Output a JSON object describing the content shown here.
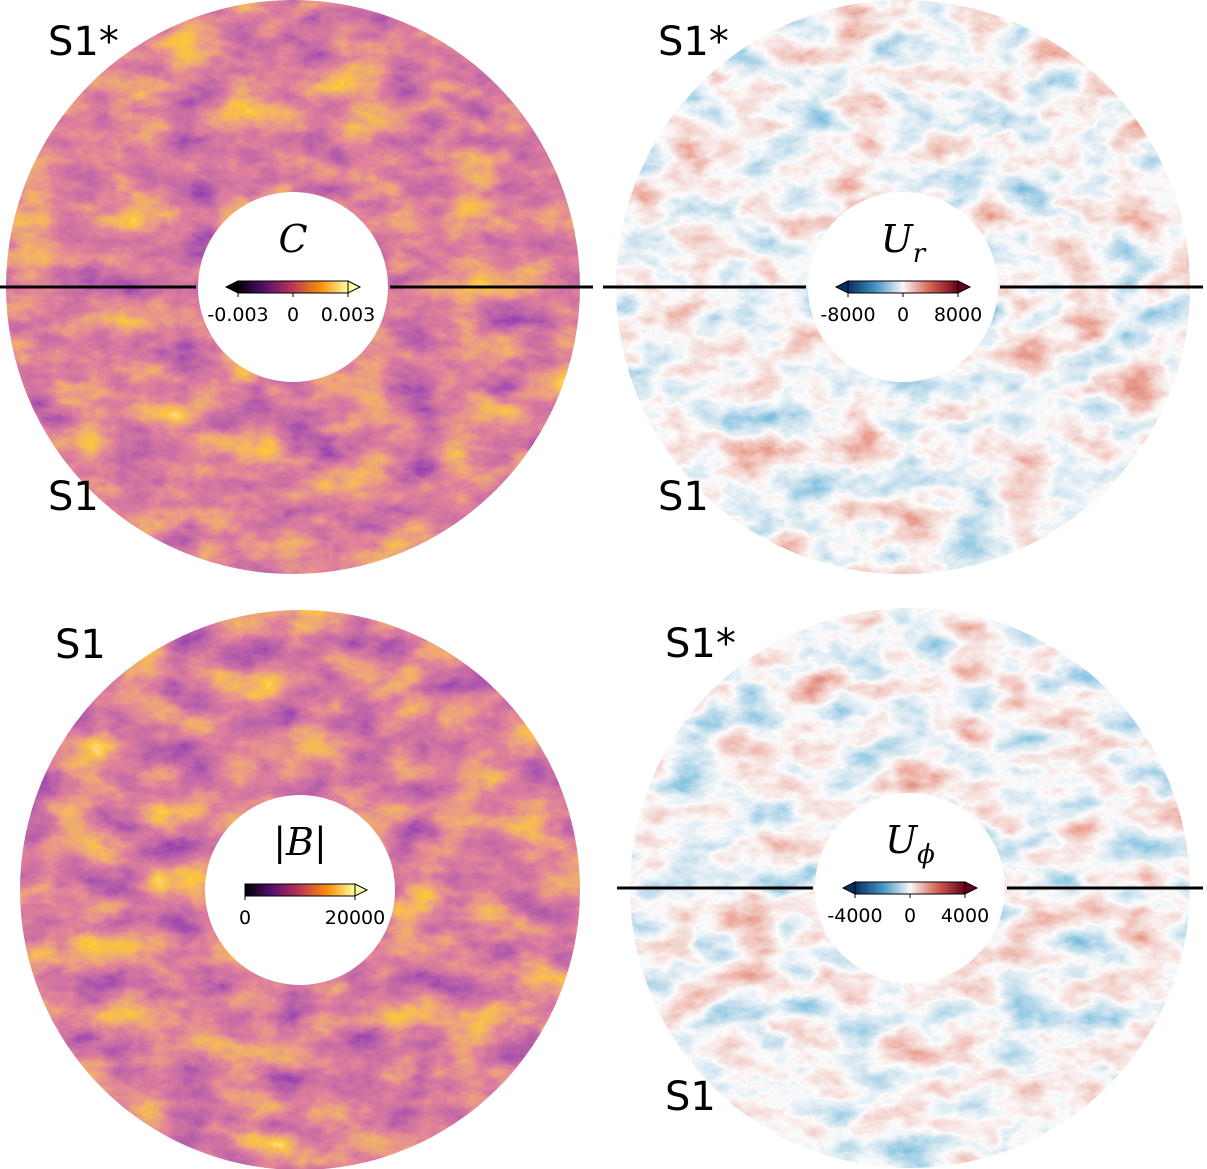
{
  "panels": [
    {
      "top_label": "S1*",
      "bottom_label": "S1",
      "quantity": "C",
      "subscript": null,
      "colorbar": {
        "clim": [
          -0.003,
          0.003
        ],
        "ticks": [
          -0.003,
          0,
          0.003
        ],
        "extend": "both",
        "colors": [
          "#000004",
          "#57106e",
          "#bc3754",
          "#f98e09",
          "#fcffa4"
        ]
      }
    },
    {
      "top_label": "S1*",
      "bottom_label": "S1",
      "quantity": "U",
      "subscript": "r",
      "colorbar": {
        "clim": [
          -8000,
          8000
        ],
        "ticks": [
          -8000,
          0,
          8000
        ],
        "extend": "both",
        "colors": [
          "#053061",
          "#4393c3",
          "#f7f7f7",
          "#d6604d",
          "#67001f"
        ]
      }
    },
    {
      "top_label": "S1",
      "bottom_label": null,
      "quantity": "|B|",
      "subscript": null,
      "colorbar": {
        "clim": [
          0,
          20000
        ],
        "ticks": [
          0,
          20000
        ],
        "extend": "max",
        "colors": [
          "#000004",
          "#57106e",
          "#bc3754",
          "#f98e09",
          "#fcffa4"
        ]
      }
    },
    {
      "top_label": "S1*",
      "bottom_label": "S1",
      "quantity": "U",
      "subscript": "ϕ",
      "colorbar": {
        "clim": [
          -4000,
          4000
        ],
        "ticks": [
          -4000,
          0,
          4000
        ],
        "extend": "both",
        "colors": [
          "#053061",
          "#4393c3",
          "#f7f7f7",
          "#d6604d",
          "#67001f"
        ]
      }
    }
  ]
}
